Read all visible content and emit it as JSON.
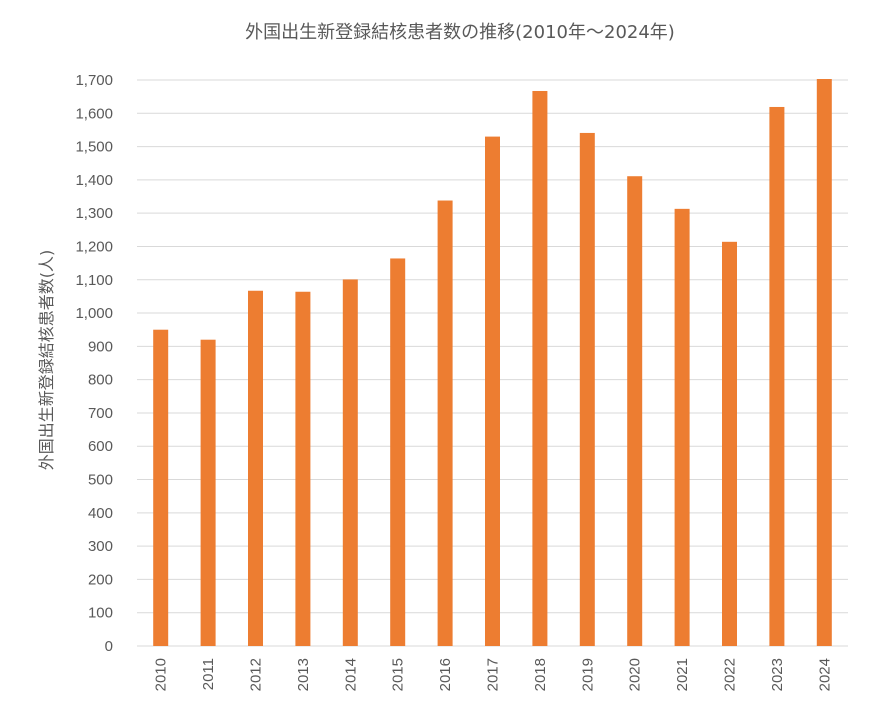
{
  "chart_data": {
    "type": "bar",
    "title": "外国出生新登録結核患者数の推移(2010年〜2024年)",
    "xlabel": "",
    "ylabel": "外国出生新登録結核患者数(人)",
    "ylim": [
      0,
      1700
    ],
    "yticks": [
      "0",
      "100",
      "200",
      "300",
      "400",
      "500",
      "600",
      "700",
      "800",
      "900",
      "1,000",
      "1,100",
      "1,200",
      "1,300",
      "1,400",
      "1,500",
      "1,600",
      "1,700"
    ],
    "categories": [
      "2010",
      "2011",
      "2012",
      "2013",
      "2014",
      "2015",
      "2016",
      "2017",
      "2018",
      "2019",
      "2020",
      "2021",
      "2022",
      "2023",
      "2024"
    ],
    "values": [
      950,
      920,
      1067,
      1064,
      1101,
      1164,
      1338,
      1530,
      1667,
      1541,
      1411,
      1313,
      1214,
      1619,
      1703
    ],
    "grid": true,
    "bar_color": "#ED7D31"
  }
}
